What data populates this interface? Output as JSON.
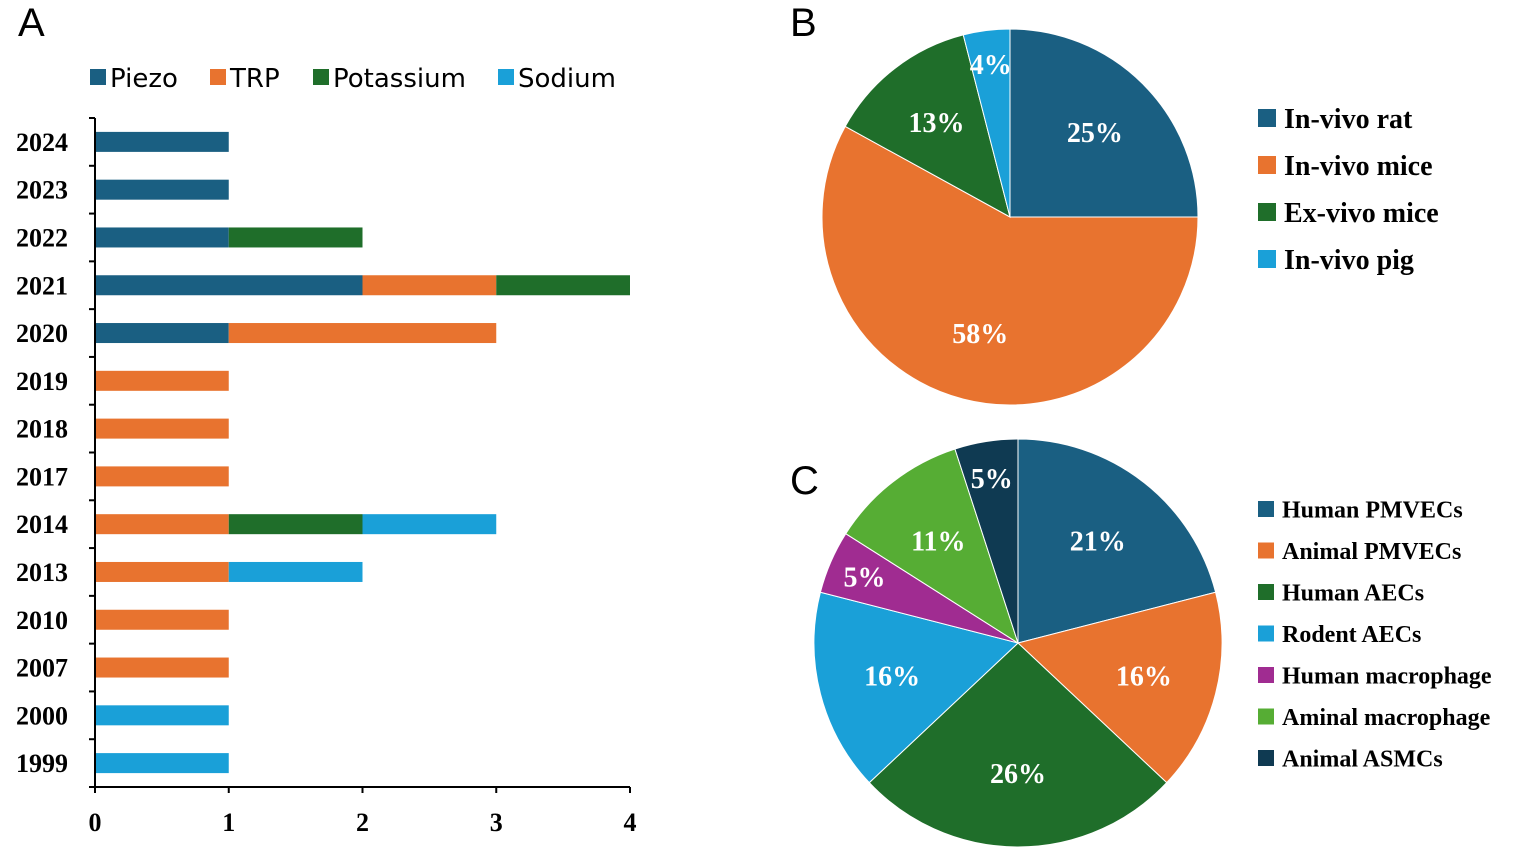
{
  "chart_data": [
    {
      "panel": "A",
      "type": "bar",
      "orientation": "horizontal",
      "stacked": true,
      "categories": [
        "2024",
        "2023",
        "2022",
        "2021",
        "2020",
        "2019",
        "2018",
        "2017",
        "2014",
        "2013",
        "2010",
        "2007",
        "2000",
        "1999"
      ],
      "series": [
        {
          "name": "Piezo",
          "color": "#1a5f82",
          "values": [
            1,
            1,
            1,
            2,
            1,
            0,
            0,
            0,
            0,
            0,
            0,
            0,
            0,
            0
          ]
        },
        {
          "name": "TRP",
          "color": "#e8732f",
          "values": [
            0,
            0,
            0,
            1,
            2,
            1,
            1,
            1,
            1,
            1,
            1,
            1,
            0,
            0
          ]
        },
        {
          "name": "Potassium",
          "color": "#1f6e2a",
          "values": [
            0,
            0,
            1,
            1,
            0,
            0,
            0,
            0,
            1,
            0,
            0,
            0,
            0,
            0
          ]
        },
        {
          "name": "Sodium",
          "color": "#1aa0d8",
          "values": [
            0,
            0,
            0,
            0,
            0,
            0,
            0,
            0,
            1,
            1,
            0,
            0,
            1,
            1
          ]
        }
      ],
      "xlim": [
        0,
        4
      ],
      "xticks": [
        "0",
        "1",
        "2",
        "3",
        "4"
      ],
      "legend": "top"
    },
    {
      "panel": "B",
      "type": "pie",
      "slices": [
        {
          "label": "In-vivo rat",
          "value": 25,
          "text": "25%",
          "color": "#1a5f82"
        },
        {
          "label": "In-vivo mice",
          "value": 58,
          "text": "58%",
          "color": "#e8732f"
        },
        {
          "label": "Ex-vivo mice",
          "value": 13,
          "text": "13%",
          "color": "#1f6e2a"
        },
        {
          "label": "In-vivo pig",
          "value": 4,
          "text": "4%",
          "color": "#1aa0d8"
        }
      ],
      "legend": "right"
    },
    {
      "panel": "C",
      "type": "pie",
      "slices": [
        {
          "label": "Human PMVECs",
          "value": 21,
          "text": "21%",
          "color": "#1a5f82"
        },
        {
          "label": "Animal PMVECs",
          "value": 16,
          "text": "16%",
          "color": "#e8732f"
        },
        {
          "label": "Human AECs",
          "value": 26,
          "text": "26%",
          "color": "#1f6e2a"
        },
        {
          "label": "Rodent AECs",
          "value": 16,
          "text": "16%",
          "color": "#1aa0d8"
        },
        {
          "label": "Human macrophage",
          "value": 5,
          "text": "5%",
          "color": "#a02c91"
        },
        {
          "label": "Aminal macrophage",
          "value": 11,
          "text": "11%",
          "color": "#56ad34"
        },
        {
          "label": "Animal ASMCs",
          "value": 5,
          "text": "5%",
          "color": "#0f3a52"
        }
      ],
      "legend": "right"
    }
  ],
  "panels": {
    "a": {
      "letter": "A"
    },
    "b": {
      "letter": "B"
    },
    "c": {
      "letter": "C"
    }
  }
}
